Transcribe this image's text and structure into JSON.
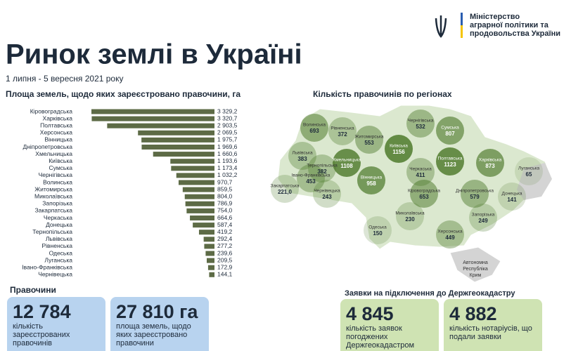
{
  "header": {
    "ministry": [
      "Міністерство",
      "аграрної політики та",
      "продовольства України"
    ],
    "title": "Ринок землі в Україні",
    "subtitle": "1 липня - 5 вересня 2021 року"
  },
  "chart_data": {
    "type": "bar",
    "orientation": "horizontal",
    "title": "Площа земель, щодо яких зареєстровано правочини, га",
    "color": "#5d6b46",
    "categories": [
      "Кіровоградська",
      "Харківська",
      "Полтавська",
      "Херсонська",
      "Вінницька",
      "Дніпропетровська",
      "Хмельницька",
      "Київська",
      "Сумська",
      "Чернігівська",
      "Волинська",
      "Житомирська",
      "Миколаївська",
      "Запорізька",
      "Закарпатська",
      "Черкаська",
      "Донецька",
      "Тернопільська",
      "Львівська",
      "Рівненська",
      "Одеська",
      "Луганська",
      "Івано-Франківська",
      "Чернівецька"
    ],
    "values": [
      3329.2,
      3320.7,
      2903.5,
      2069.5,
      1975.7,
      1969.6,
      1660.6,
      1193.6,
      1173.4,
      1032.2,
      970.7,
      859.5,
      804.0,
      786.9,
      754.0,
      664.6,
      587.4,
      419.2,
      292.4,
      277.2,
      239.6,
      209.5,
      172.9,
      144.1
    ],
    "value_labels": [
      "3 329,2",
      "3 320,7",
      "2 903,5",
      "2 069,5",
      "1 975,7",
      "1 969,6",
      "1 660,6",
      "1 193,6",
      "1 173,4",
      "1 032,2",
      "970,7",
      "859,5",
      "804,0",
      "786,9",
      "754,0",
      "664,6",
      "587,4",
      "419,2",
      "292,4",
      "277,2",
      "239,6",
      "209,5",
      "172,9",
      "144,1"
    ]
  },
  "map": {
    "title": "Кількість правочинів по регіонах",
    "color": "#4e7a2c",
    "regions": [
      {
        "name": "Волинська",
        "value": 693
      },
      {
        "name": "Рівненська",
        "value": 372
      },
      {
        "name": "Житомирська",
        "value": 553
      },
      {
        "name": "Київська",
        "value": 1156
      },
      {
        "name": "Чернігівська",
        "value": 532
      },
      {
        "name": "Сумська",
        "value": 807
      },
      {
        "name": "Львівська",
        "value": 383
      },
      {
        "name": "Тернопільська",
        "value": 382
      },
      {
        "name": "Хмельницька",
        "value": 1108
      },
      {
        "name": "Харківська",
        "value": 873
      },
      {
        "name": "Полтавська",
        "value": 1123
      },
      {
        "name": "Луганська",
        "value": 65
      },
      {
        "name": "Івано-Франківська",
        "value": 453
      },
      {
        "name": "Вінницька",
        "value": 958
      },
      {
        "name": "Черкаська",
        "value": 411
      },
      {
        "name": "Закарпатська",
        "value": 221.0,
        "value_label": "221,0"
      },
      {
        "name": "Чернівецька",
        "value": 243
      },
      {
        "name": "Кіровоградська",
        "value": 653
      },
      {
        "name": "Дніпропетровська",
        "value": 579
      },
      {
        "name": "Донецька",
        "value": 141
      },
      {
        "name": "Миколаївська",
        "value": 230
      },
      {
        "name": "Запорізька",
        "value": 249
      },
      {
        "name": "Одеська",
        "value": 150
      },
      {
        "name": "Херсонська",
        "value": 449
      }
    ],
    "crimea": [
      "Автономна",
      "Республіка",
      "Крим"
    ]
  },
  "stats": {
    "title": "Правочини",
    "items": [
      {
        "value": "12 784",
        "text": "кількість зареєстрованих правочинів"
      },
      {
        "value": "27 810 га",
        "text": "площа земель, щодо яких зареєстровано правочини"
      }
    ]
  },
  "applications": {
    "title": "Заявки на підключення до Держгеокадастру",
    "items": [
      {
        "value": "4 845",
        "text": "кількість заявок погоджених Держгеокадастром"
      },
      {
        "value": "4 882",
        "text": "кількість нотаріусів, що подали заявки"
      }
    ]
  }
}
